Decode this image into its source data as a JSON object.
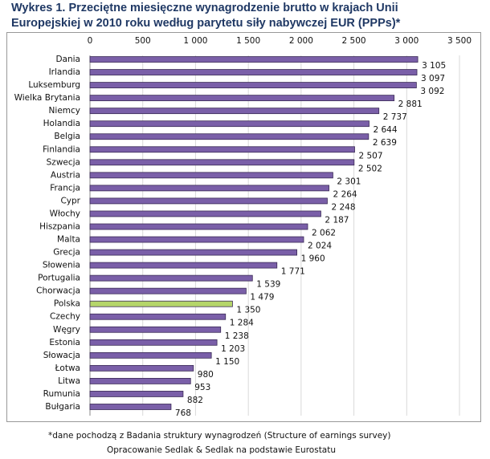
{
  "chart_data": {
    "type": "hbar",
    "title": [
      "Wykres 1. Przeciętne miesięczne wynagrodzenie brutto w krajach Unii",
      "Europejskiej w 2010 roku według parytetu siły nabywczej EUR (PPPs)*"
    ],
    "categories": [
      "Dania",
      "Irlandia",
      "Luksemburg",
      "Wielka Brytania",
      "Niemcy",
      "Holandia",
      "Belgia",
      "Finlandia",
      "Szwecja",
      "Austria",
      "Francja",
      "Cypr",
      "Włochy",
      "Hiszpania",
      "Malta",
      "Grecja",
      "Słowenia",
      "Portugalia",
      "Chorwacja",
      "Polska",
      "Czechy",
      "Węgry",
      "Estonia",
      "Słowacja",
      "Łotwa",
      "Litwa",
      "Rumunia",
      "Bułgaria"
    ],
    "values": [
      3105,
      3097,
      3092,
      2881,
      2737,
      2644,
      2639,
      2507,
      2502,
      2301,
      2264,
      2248,
      2187,
      2062,
      2024,
      1960,
      1771,
      1539,
      1479,
      1350,
      1284,
      1238,
      1203,
      1150,
      980,
      953,
      882,
      768
    ],
    "value_labels": [
      "3 105",
      "3 097",
      "3 092",
      "2 881",
      "2 737",
      "2 644",
      "2 639",
      "2 507",
      "2 502",
      "2 301",
      "2 264",
      "2 248",
      "2 187",
      "2 062",
      "2 024",
      "1 960",
      "1 771",
      "1 539",
      "1 479",
      "1 350",
      "1 284",
      "1 238",
      "1 203",
      "1 150",
      "980",
      "953",
      "882",
      "768"
    ],
    "colors": [
      "#7a5fa8",
      "#7a5fa8",
      "#7a5fa8",
      "#7a5fa8",
      "#7a5fa8",
      "#7a5fa8",
      "#7a5fa8",
      "#7a5fa8",
      "#7a5fa8",
      "#7a5fa8",
      "#7a5fa8",
      "#7a5fa8",
      "#7a5fa8",
      "#7a5fa8",
      "#7a5fa8",
      "#7a5fa8",
      "#7a5fa8",
      "#7a5fa8",
      "#7a5fa8",
      "#b5d66a",
      "#7a5fa8",
      "#7a5fa8",
      "#7a5fa8",
      "#7a5fa8",
      "#7a5fa8",
      "#7a5fa8",
      "#7a5fa8",
      "#7a5fa8"
    ],
    "xlim": [
      0,
      3500
    ],
    "xticks": [
      0,
      500,
      {
        "value": 1000,
        "label": "1 000"
      },
      {
        "value": 1500,
        "label": "1 500"
      },
      {
        "value": 2000,
        "label": "2 000"
      },
      {
        "value": 2500,
        "label": "2 500"
      },
      {
        "value": 3000,
        "label": "3 000"
      },
      {
        "value": 3500,
        "label": "3 500"
      }
    ],
    "grid": true,
    "notes": [
      "*dane pochodzą z Badania struktury wynagrodzeń (Structure of earnings survey)",
      "Opracowanie Sedlak & Sedlak na podstawie Eurostatu"
    ]
  }
}
